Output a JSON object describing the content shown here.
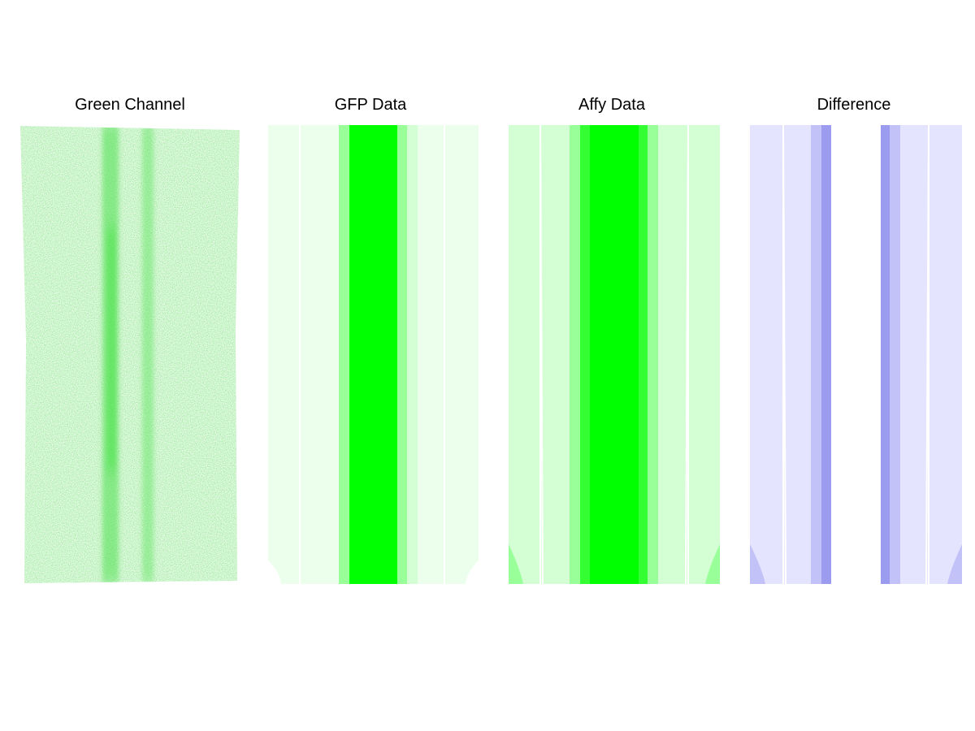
{
  "panels": [
    {
      "title": "Green Channel"
    },
    {
      "title": "GFP Data"
    },
    {
      "title": "Affy Data"
    },
    {
      "title": "Difference"
    }
  ],
  "colors": {
    "green_strong": "#00ff00",
    "green_medium": "#99ff99",
    "green_light": "#d4ffd4",
    "green_pale": "#ecffec",
    "blue_strong": "#9b9bf0",
    "blue_medium": "#c2c2f8",
    "blue_light": "#e4e4ff"
  },
  "chart_data": [
    {
      "type": "heatmap",
      "title": "Green Channel",
      "description_values": "noisy scanned intensity image with two vertical stripes",
      "stripe_intensity": [
        0.05,
        0.05,
        0.1,
        0.45,
        0.15,
        0.35,
        0.08,
        0.05,
        0.05
      ]
    },
    {
      "type": "heatmap",
      "title": "GFP Data",
      "bands": [
        {
          "level": "pale"
        },
        {
          "level": "pale"
        },
        {
          "level": "medium"
        },
        {
          "level": "strong"
        },
        {
          "level": "medium"
        },
        {
          "level": "pale"
        },
        {
          "level": "pale"
        }
      ]
    },
    {
      "type": "heatmap",
      "title": "Affy Data",
      "bands": [
        {
          "level": "light"
        },
        {
          "level": "light"
        },
        {
          "level": "light"
        },
        {
          "level": "medium"
        },
        {
          "level": "strong"
        },
        {
          "level": "strong"
        },
        {
          "level": "medium"
        },
        {
          "level": "light"
        },
        {
          "level": "light"
        }
      ]
    },
    {
      "type": "heatmap",
      "title": "Difference",
      "bands": [
        {
          "level": "light"
        },
        {
          "level": "light"
        },
        {
          "level": "medium"
        },
        {
          "level": "strong"
        },
        {
          "level": "none"
        },
        {
          "level": "strong"
        },
        {
          "level": "medium"
        },
        {
          "level": "light"
        },
        {
          "level": "light"
        }
      ]
    }
  ]
}
